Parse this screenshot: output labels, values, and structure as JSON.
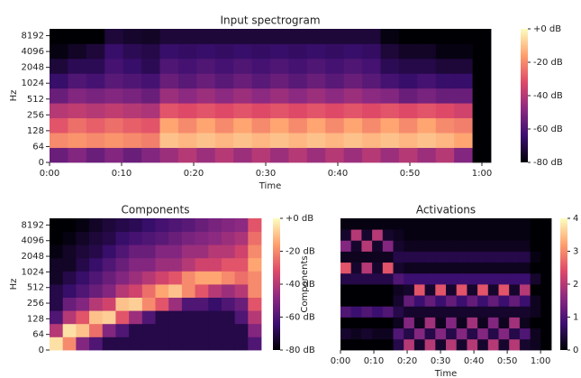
{
  "chart_data": [
    {
      "type": "heatmap",
      "title": "Input spectrogram",
      "xlabel": "Time",
      "ylabel": "Hz",
      "xlim": [
        0,
        61.25
      ],
      "xticks": [
        {
          "value": 0,
          "label": "0:00"
        },
        {
          "value": 10,
          "label": "0:10"
        },
        {
          "value": 20,
          "label": "0:20"
        },
        {
          "value": 30,
          "label": "0:30"
        },
        {
          "value": 40,
          "label": "0:40"
        },
        {
          "value": 50,
          "label": "0:50"
        },
        {
          "value": 60,
          "label": "1:00"
        }
      ],
      "ylim": [
        0,
        11025
      ],
      "yscale": "symlog",
      "linthresh": 64,
      "yticks": [
        0,
        64,
        128,
        256,
        512,
        1024,
        2048,
        4096,
        8192
      ],
      "colormap": [
        "#000004",
        "#3b0f70",
        "#8c2981",
        "#de4968",
        "#fe9f6d",
        "#fcfdbf"
      ],
      "colorbar": {
        "lim": [
          -80,
          0
        ],
        "ticks": [
          {
            "value": 0,
            "label": "+0 dB"
          },
          {
            "value": -20,
            "label": "-20 dB"
          },
          {
            "value": -40,
            "label": "-40 dB"
          },
          {
            "value": -60,
            "label": "-60 dB"
          },
          {
            "value": -80,
            "label": "-80 dB"
          }
        ]
      },
      "z": [
        [
          -55,
          -50,
          -55,
          -50,
          -55,
          -50,
          -45,
          -40,
          -45,
          -40,
          -45,
          -40,
          -45,
          -40,
          -45,
          -40,
          -45,
          -40,
          -45,
          -40,
          -45,
          -40,
          -50,
          -80
        ],
        [
          -20,
          -18,
          -20,
          -18,
          -20,
          -22,
          -10,
          -12,
          -10,
          -12,
          -10,
          -12,
          -10,
          -12,
          -10,
          -12,
          -10,
          -12,
          -10,
          -12,
          -10,
          -12,
          -15,
          -80
        ],
        [
          -30,
          -25,
          -28,
          -25,
          -28,
          -30,
          -15,
          -20,
          -15,
          -20,
          -15,
          -20,
          -15,
          -20,
          -15,
          -20,
          -15,
          -20,
          -15,
          -20,
          -15,
          -20,
          -22,
          -80
        ],
        [
          -40,
          -38,
          -40,
          -38,
          -40,
          -42,
          -30,
          -32,
          -30,
          -32,
          -30,
          -32,
          -30,
          -32,
          -30,
          -32,
          -30,
          -32,
          -30,
          -32,
          -30,
          -32,
          -35,
          -80
        ],
        [
          -55,
          -50,
          -52,
          -50,
          -52,
          -55,
          -45,
          -48,
          -45,
          -48,
          -45,
          -48,
          -45,
          -48,
          -45,
          -48,
          -45,
          -48,
          -50,
          -55,
          -52,
          -55,
          -55,
          -80
        ],
        [
          -65,
          -60,
          -62,
          -58,
          -60,
          -62,
          -55,
          -58,
          -55,
          -58,
          -55,
          -58,
          -55,
          -58,
          -55,
          -58,
          -55,
          -58,
          -62,
          -65,
          -62,
          -65,
          -65,
          -80
        ],
        [
          -72,
          -68,
          -68,
          -62,
          -65,
          -68,
          -60,
          -62,
          -60,
          -62,
          -60,
          -62,
          -60,
          -62,
          -60,
          -62,
          -60,
          -62,
          -68,
          -70,
          -70,
          -72,
          -72,
          -80
        ],
        [
          -78,
          -75,
          -72,
          -65,
          -68,
          -70,
          -65,
          -66,
          -65,
          -66,
          -65,
          -66,
          -65,
          -66,
          -65,
          -66,
          -65,
          -66,
          -72,
          -75,
          -75,
          -78,
          -78,
          -80
        ],
        [
          -80,
          -80,
          -80,
          -72,
          -74,
          -75,
          -72,
          -72,
          -72,
          -72,
          -72,
          -72,
          -72,
          -72,
          -72,
          -72,
          -72,
          -72,
          -78,
          -80,
          -80,
          -80,
          -80,
          -80
        ]
      ]
    },
    {
      "type": "heatmap",
      "title": "Components",
      "ylabel": "Hz",
      "ylim": [
        0,
        11025
      ],
      "yscale": "symlog",
      "linthresh": 64,
      "yticks": [
        0,
        64,
        128,
        256,
        512,
        1024,
        2048,
        4096,
        8192
      ],
      "colormap": [
        "#000004",
        "#3b0f70",
        "#8c2981",
        "#de4968",
        "#fe9f6d",
        "#fcfdbf"
      ],
      "colorbar": {
        "lim": [
          -80,
          0
        ],
        "ticks": [
          {
            "value": 0,
            "label": "+0 dB"
          },
          {
            "value": -20,
            "label": "-20 dB"
          },
          {
            "value": -40,
            "label": "-40 dB"
          },
          {
            "value": -60,
            "label": "-60 dB"
          },
          {
            "value": -80,
            "label": "-80 dB"
          }
        ]
      },
      "z": [
        [
          -5,
          -20,
          -50,
          -60,
          -70,
          -70,
          -70,
          -70,
          -70,
          -70,
          -70,
          -70,
          -70,
          -70,
          -70,
          -60
        ],
        [
          -40,
          -5,
          -10,
          -25,
          -50,
          -60,
          -70,
          -70,
          -70,
          -70,
          -70,
          -70,
          -70,
          -70,
          -70,
          -50
        ],
        [
          -60,
          -40,
          -30,
          -10,
          -8,
          -30,
          -45,
          -60,
          -70,
          -70,
          -70,
          -70,
          -70,
          -70,
          -60,
          -40
        ],
        [
          -70,
          -55,
          -50,
          -40,
          -35,
          -10,
          -8,
          -20,
          -30,
          -45,
          -60,
          -60,
          -65,
          -60,
          -55,
          -30
        ],
        [
          -70,
          -65,
          -60,
          -55,
          -50,
          -40,
          -35,
          -25,
          -15,
          -10,
          -20,
          -30,
          -40,
          -45,
          -40,
          -20
        ],
        [
          -75,
          -70,
          -65,
          -60,
          -55,
          -50,
          -45,
          -40,
          -35,
          -30,
          -20,
          -15,
          -15,
          -20,
          -25,
          -20
        ],
        [
          -75,
          -75,
          -70,
          -65,
          -60,
          -55,
          -50,
          -50,
          -45,
          -45,
          -40,
          -35,
          -35,
          -30,
          -30,
          -15
        ],
        [
          -78,
          -75,
          -72,
          -70,
          -65,
          -60,
          -55,
          -55,
          -50,
          -50,
          -45,
          -45,
          -40,
          -40,
          -35,
          -20
        ],
        [
          -80,
          -78,
          -75,
          -72,
          -70,
          -65,
          -62,
          -60,
          -58,
          -55,
          -52,
          -50,
          -48,
          -45,
          -42,
          -25
        ],
        [
          -80,
          -80,
          -78,
          -75,
          -72,
          -70,
          -68,
          -65,
          -62,
          -60,
          -58,
          -55,
          -52,
          -50,
          -48,
          -30
        ]
      ]
    },
    {
      "type": "heatmap",
      "title": "Activations",
      "xlabel": "Time",
      "ylabel": "Components",
      "xlim": [
        0,
        63.2
      ],
      "xticks": [
        {
          "value": 0,
          "label": "0:00"
        },
        {
          "value": 10,
          "label": "0:10"
        },
        {
          "value": 20,
          "label": "0:20"
        },
        {
          "value": 30,
          "label": "0:30"
        },
        {
          "value": 40,
          "label": "0:40"
        },
        {
          "value": 50,
          "label": "0:50"
        },
        {
          "value": 60,
          "label": "1:00"
        }
      ],
      "colormap": [
        "#000004",
        "#3b0f70",
        "#8c2981",
        "#de4968",
        "#fe9f6d",
        "#fcfdbf"
      ],
      "colorbar": {
        "lim": [
          0,
          4
        ],
        "ticks": [
          0,
          1,
          2,
          3,
          4
        ]
      },
      "z": [
        [
          0,
          0,
          0,
          0,
          0,
          0.5,
          2,
          0.3,
          2,
          0.3,
          2,
          0.3,
          2,
          0.3,
          2,
          0.3,
          2,
          0.3,
          0.2,
          0
        ],
        [
          0.3,
          0.2,
          0.3,
          0.2,
          0.2,
          1,
          0.5,
          1.5,
          0.5,
          1.5,
          0.5,
          1.5,
          0.5,
          1.5,
          0.5,
          1.5,
          0.5,
          1,
          0.2,
          0
        ],
        [
          0,
          0,
          0,
          0,
          0,
          0.2,
          1.5,
          0.2,
          1.8,
          0.2,
          1.5,
          0.2,
          1.8,
          0.2,
          1.5,
          0.2,
          1.8,
          0.2,
          0,
          0
        ],
        [
          1,
          0.8,
          1,
          0.8,
          1,
          0.5,
          0.3,
          0.3,
          0.3,
          0.3,
          0.3,
          0.3,
          0.3,
          0.3,
          0.3,
          0.3,
          0.3,
          0.3,
          0.2,
          0
        ],
        [
          0,
          0,
          0,
          0,
          0,
          0.3,
          1.2,
          0.8,
          1.2,
          0.8,
          1.2,
          0.8,
          1.2,
          0.8,
          1.2,
          0.8,
          1.2,
          0.8,
          0.2,
          0
        ],
        [
          0,
          0,
          0,
          0,
          0,
          0.2,
          0.3,
          2.5,
          0.3,
          2.5,
          0.3,
          2.5,
          0.3,
          2.5,
          0.3,
          2.5,
          0.3,
          2,
          0,
          0
        ],
        [
          0.5,
          0.5,
          0.5,
          0.5,
          0.5,
          1,
          0.8,
          0.8,
          0.8,
          0.8,
          0.8,
          0.8,
          0.8,
          0.8,
          0.8,
          0.8,
          0.8,
          0.8,
          0.3,
          0
        ],
        [
          2.5,
          0.3,
          2,
          0.3,
          2.5,
          0.3,
          0.2,
          0.2,
          0.2,
          0.2,
          0.2,
          0.2,
          0.2,
          0.2,
          0.2,
          0.2,
          0.2,
          0.2,
          0,
          0
        ],
        [
          0.2,
          0.2,
          0.2,
          0.2,
          0.2,
          0.5,
          0.5,
          0.5,
          0.5,
          0.5,
          0.5,
          0.5,
          0.5,
          0.5,
          0.5,
          0.5,
          0.5,
          0.5,
          0.1,
          0
        ],
        [
          1.5,
          0.3,
          2,
          0.3,
          1.5,
          0.3,
          0.2,
          0.2,
          0.2,
          0.2,
          0.2,
          0.2,
          0.2,
          0.2,
          0.2,
          0.2,
          0.2,
          0.2,
          0,
          0
        ],
        [
          0.3,
          2,
          0.3,
          2,
          0.3,
          0.2,
          0.1,
          0.1,
          0.1,
          0.1,
          0.1,
          0.1,
          0.1,
          0.1,
          0.1,
          0.1,
          0.1,
          0.1,
          0,
          0
        ],
        [
          0.1,
          0.1,
          0.1,
          0.1,
          0.1,
          0.1,
          0.1,
          0.1,
          0.1,
          0.1,
          0.1,
          0.1,
          0.1,
          0.1,
          0.1,
          0.1,
          0.1,
          0.1,
          0,
          0
        ]
      ]
    }
  ]
}
